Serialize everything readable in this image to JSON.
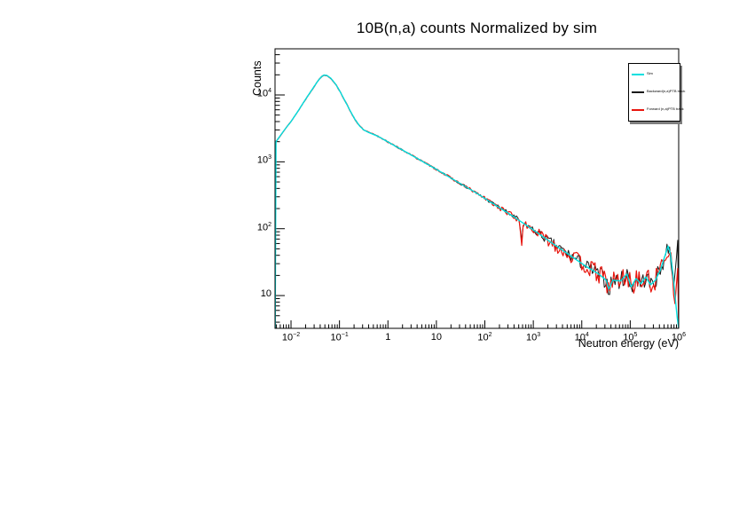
{
  "title": "10B(n,a) counts Normalized by sim",
  "axes": {
    "x": {
      "label": "Neutron energy (eV)"
    },
    "y": {
      "label": "Counts"
    }
  },
  "chart_data": {
    "type": "line",
    "title": "10B(n,a) counts Normalized by sim",
    "xlabel": "Neutron energy (eV)",
    "ylabel": "Counts",
    "xscale": "log",
    "yscale": "log",
    "xlim_log10": [
      -2.33,
      6.0
    ],
    "ylim_log10": [
      0.51,
      4.69
    ],
    "x_decade_ticks": [
      -2,
      -1,
      0,
      1,
      2,
      3,
      4,
      5,
      6
    ],
    "y_decade_ticks": [
      1,
      2,
      3,
      4
    ],
    "grid": false,
    "legend_position": "top-right",
    "series": [
      {
        "name": "Sim",
        "color": "#00dfdf",
        "style": "smooth",
        "stroke_width": 1.4,
        "points_log10E_counts": [
          [
            -2.31,
            2000
          ],
          [
            -2.15,
            2900
          ],
          [
            -2.0,
            4000
          ],
          [
            -1.85,
            5800
          ],
          [
            -1.7,
            8600
          ],
          [
            -1.55,
            12500
          ],
          [
            -1.45,
            16000
          ],
          [
            -1.38,
            18500
          ],
          [
            -1.32,
            19800
          ],
          [
            -1.26,
            19600
          ],
          [
            -1.18,
            17800
          ],
          [
            -1.08,
            14500
          ],
          [
            -0.98,
            11000
          ],
          [
            -0.88,
            8000
          ],
          [
            -0.78,
            5800
          ],
          [
            -0.68,
            4300
          ],
          [
            -0.58,
            3400
          ],
          [
            -0.5,
            3000
          ],
          [
            -0.4,
            2750
          ],
          [
            -0.2,
            2400
          ],
          [
            0,
            1980
          ],
          [
            0.3,
            1500
          ],
          [
            0.6,
            1130
          ],
          [
            1,
            770
          ],
          [
            1.4,
            520
          ],
          [
            1.8,
            350
          ],
          [
            2.2,
            230
          ],
          [
            2.6,
            150
          ],
          [
            3,
            96
          ],
          [
            3.4,
            60
          ],
          [
            3.8,
            38
          ],
          [
            4.1,
            27
          ],
          [
            4.35,
            21
          ],
          [
            4.5,
            17
          ],
          [
            4.56,
            12.5
          ],
          [
            4.64,
            17
          ],
          [
            4.8,
            16.5
          ],
          [
            4.93,
            21
          ],
          [
            5.02,
            13.5
          ],
          [
            5.12,
            18
          ],
          [
            5.22,
            15
          ],
          [
            5.32,
            19
          ],
          [
            5.42,
            14.5
          ],
          [
            5.52,
            17
          ],
          [
            5.62,
            24
          ],
          [
            5.72,
            40
          ],
          [
            5.78,
            55
          ],
          [
            5.83,
            42
          ],
          [
            5.88,
            22
          ],
          [
            5.93,
            9
          ],
          [
            5.97,
            4.6
          ],
          [
            6.0,
            3.3
          ]
        ]
      },
      {
        "name": "Backward(n,a)PTB track",
        "color": "#1a1a1a",
        "style": "noisy-follow",
        "stroke_width": 1,
        "base": "Sim",
        "noise_seed": 7,
        "noise_amp_log10": [
          [
            -2.33,
            0.004
          ],
          [
            1,
            0.01
          ],
          [
            2,
            0.022
          ],
          [
            3,
            0.05
          ],
          [
            3.5,
            0.08
          ],
          [
            4,
            0.1
          ],
          [
            4.5,
            0.13
          ],
          [
            6,
            0.14
          ]
        ],
        "dips": [
          {
            "center_log10E": 2.76,
            "width": 0.03,
            "depth": 0.5
          }
        ],
        "end_spike": {
          "start_log10E": 5.86,
          "peak_counts": 100
        }
      },
      {
        "name": "Forward (n,a)PTB track",
        "color": "#e8150d",
        "style": "noisy-follow",
        "stroke_width": 1.2,
        "base": "Sim",
        "noise_seed": 13,
        "noise_amp_log10": [
          [
            -2.33,
            0.005
          ],
          [
            1,
            0.013
          ],
          [
            2,
            0.028
          ],
          [
            3,
            0.065
          ],
          [
            3.5,
            0.1
          ],
          [
            4,
            0.125
          ],
          [
            4.5,
            0.16
          ],
          [
            6,
            0.17
          ]
        ],
        "dips": [
          {
            "center_log10E": 2.76,
            "width": 0.03,
            "depth": 0.5
          }
        ],
        "end_spike": {
          "start_log10E": 5.88,
          "peak_counts": 40
        }
      }
    ]
  }
}
